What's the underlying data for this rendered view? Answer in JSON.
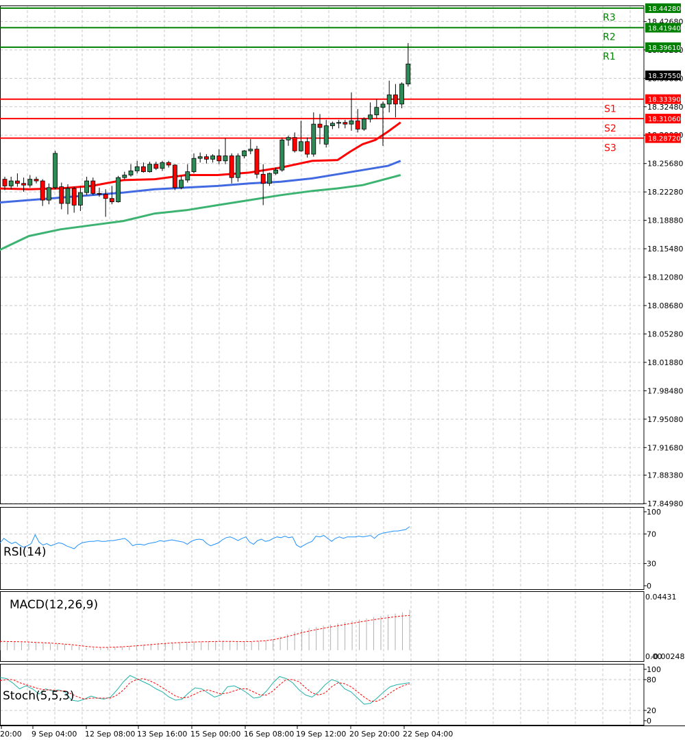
{
  "chart_data": [
    {
      "type": "candlestick",
      "panel": "price",
      "ylim": [
        17.8498,
        18.446
      ],
      "y_ticks": [
        "18.42680",
        "18.39280",
        "18.35880",
        "18.32480",
        "18.29080",
        "18.25680",
        "18.22280",
        "18.18880",
        "18.15480",
        "18.12080",
        "18.08680",
        "18.05280",
        "18.01880",
        "17.98480",
        "17.95080",
        "17.91680",
        "17.88380",
        "17.84980"
      ],
      "x_tick_labels": [
        "20:00",
        "9 Sep 04:00",
        "12 Sep 08:00",
        "13 Sep 16:00",
        "15 Sep 00:00",
        "16 Sep 08:00",
        "19 Sep 12:00",
        "20 Sep 20:00",
        "22 Sep 04:00"
      ],
      "current_price": "18.37550",
      "levels": [
        {
          "name": "R3",
          "value": 18.4428,
          "tag": "18.44280",
          "color": "#008000"
        },
        {
          "name": "R2",
          "value": 18.4194,
          "tag": "18.41940",
          "color": "#008000"
        },
        {
          "name": "R1",
          "value": 18.3961,
          "tag": "18.39610",
          "color": "#008000"
        },
        {
          "name": "S1",
          "value": 18.3339,
          "tag": "18.33390",
          "color": "#ff0000"
        },
        {
          "name": "S2",
          "value": 18.3106,
          "tag": "18.31060",
          "color": "#ff0000"
        },
        {
          "name": "S3",
          "value": 18.2872,
          "tag": "18.28720",
          "color": "#ff0000"
        }
      ],
      "candles": [
        [
          18.238,
          18.241,
          18.225,
          18.23
        ],
        [
          18.23,
          18.241,
          18.226,
          18.236
        ],
        [
          18.236,
          18.245,
          18.229,
          18.233
        ],
        [
          18.233,
          18.24,
          18.223,
          18.231
        ],
        [
          18.231,
          18.243,
          18.228,
          18.238
        ],
        [
          18.238,
          18.241,
          18.233,
          18.236
        ],
        [
          18.236,
          18.238,
          18.206,
          18.213
        ],
        [
          18.213,
          18.233,
          18.208,
          18.228
        ],
        [
          18.228,
          18.272,
          18.226,
          18.269
        ],
        [
          18.229,
          18.234,
          18.202,
          18.209
        ],
        [
          18.209,
          18.232,
          18.196,
          18.227
        ],
        [
          18.227,
          18.229,
          18.198,
          18.207
        ],
        [
          18.207,
          18.23,
          18.2,
          18.222
        ],
        [
          18.222,
          18.241,
          18.219,
          18.236
        ],
        [
          18.236,
          18.24,
          18.219,
          18.221
        ],
        [
          18.221,
          18.228,
          18.217,
          18.22
        ],
        [
          18.22,
          18.226,
          18.193,
          18.215
        ],
        [
          18.215,
          18.23,
          18.208,
          18.211
        ],
        [
          18.211,
          18.242,
          18.21,
          18.24
        ],
        [
          18.24,
          18.247,
          18.238,
          18.243
        ],
        [
          18.243,
          18.256,
          18.241,
          18.248
        ],
        [
          18.248,
          18.26,
          18.245,
          18.253
        ],
        [
          18.253,
          18.258,
          18.246,
          18.247
        ],
        [
          18.247,
          18.259,
          18.246,
          18.256
        ],
        [
          18.256,
          18.259,
          18.249,
          18.251
        ],
        [
          18.251,
          18.26,
          18.248,
          18.258
        ],
        [
          18.258,
          18.26,
          18.252,
          18.255
        ],
        [
          18.255,
          18.256,
          18.225,
          18.228
        ],
        [
          18.228,
          18.242,
          18.226,
          18.237
        ],
        [
          18.237,
          18.256,
          18.234,
          18.247
        ],
        [
          18.247,
          18.269,
          18.245,
          18.263
        ],
        [
          18.263,
          18.27,
          18.258,
          18.265
        ],
        [
          18.265,
          18.268,
          18.257,
          18.262
        ],
        [
          18.262,
          18.268,
          18.258,
          18.266
        ],
        [
          18.266,
          18.274,
          18.256,
          18.26
        ],
        [
          18.26,
          18.287,
          18.256,
          18.266
        ],
        [
          18.266,
          18.269,
          18.233,
          18.24
        ],
        [
          18.24,
          18.269,
          18.235,
          18.266
        ],
        [
          18.266,
          18.273,
          18.263,
          18.272
        ],
        [
          18.272,
          18.286,
          18.268,
          18.274
        ],
        [
          18.274,
          18.278,
          18.239,
          18.244
        ],
        [
          18.244,
          18.256,
          18.207,
          18.233
        ],
        [
          18.233,
          18.246,
          18.23,
          18.245
        ],
        [
          18.245,
          18.252,
          18.243,
          18.249
        ],
        [
          18.249,
          18.288,
          18.247,
          18.285
        ],
        [
          18.285,
          18.29,
          18.278,
          18.288
        ],
        [
          18.288,
          18.294,
          18.27,
          18.272
        ],
        [
          18.272,
          18.308,
          18.271,
          18.283
        ],
        [
          18.283,
          18.288,
          18.264,
          18.268
        ],
        [
          18.268,
          18.318,
          18.265,
          18.304
        ],
        [
          18.304,
          18.316,
          18.28,
          18.3
        ],
        [
          18.28,
          18.309,
          18.276,
          18.302
        ],
        [
          18.302,
          18.307,
          18.298,
          18.305
        ],
        [
          18.305,
          18.309,
          18.299,
          18.306
        ],
        [
          18.306,
          18.309,
          18.299,
          18.304
        ],
        [
          18.304,
          18.342,
          18.296,
          18.308
        ],
        [
          18.308,
          18.322,
          18.294,
          18.298
        ],
        [
          18.298,
          18.312,
          18.296,
          18.31
        ],
        [
          18.31,
          18.33,
          18.306,
          18.315
        ],
        [
          18.315,
          18.334,
          18.31,
          18.324
        ],
        [
          18.324,
          18.331,
          18.278,
          18.328
        ],
        [
          18.328,
          18.356,
          18.318,
          18.339
        ],
        [
          18.339,
          18.352,
          18.312,
          18.328
        ],
        [
          18.328,
          18.354,
          18.323,
          18.352
        ],
        [
          18.352,
          18.401,
          18.349,
          18.376
        ]
      ],
      "series": [
        {
          "color": "#ff0000",
          "width": 3,
          "points": [
            [
              0,
              18.227
            ],
            [
              10,
              18.226
            ],
            [
              20,
              18.227
            ],
            [
              30,
              18.23
            ],
            [
              40,
              18.237
            ],
            [
              50,
              18.238
            ],
            [
              60,
              18.243
            ],
            [
              70,
              18.243
            ],
            [
              80,
              18.246
            ],
            [
              90,
              18.252
            ],
            [
              100,
              18.26
            ],
            [
              108,
              18.261
            ],
            [
              112,
              18.271
            ],
            [
              116,
              18.28
            ],
            [
              120,
              18.285
            ],
            [
              124,
              18.295
            ],
            [
              128,
              18.306
            ]
          ]
        },
        {
          "color": "#4169e1",
          "width": 3,
          "points": [
            [
              0,
              18.21
            ],
            [
              10,
              18.213
            ],
            [
              20,
              18.216
            ],
            [
              30,
              18.219
            ],
            [
              40,
              18.222
            ],
            [
              50,
              18.226
            ],
            [
              60,
              18.228
            ],
            [
              70,
              18.23
            ],
            [
              80,
              18.233
            ],
            [
              90,
              18.235
            ],
            [
              100,
              18.239
            ],
            [
              108,
              18.244
            ],
            [
              116,
              18.249
            ],
            [
              124,
              18.254
            ],
            [
              128,
              18.26
            ]
          ]
        },
        {
          "color": "#3cb371",
          "width": 3,
          "points": [
            [
              0,
              18.152
            ],
            [
              10,
              18.17
            ],
            [
              20,
              18.178
            ],
            [
              30,
              18.183
            ],
            [
              40,
              18.188
            ],
            [
              50,
              18.197
            ],
            [
              60,
              18.201
            ],
            [
              70,
              18.207
            ],
            [
              80,
              18.213
            ],
            [
              90,
              18.219
            ],
            [
              100,
              18.224
            ],
            [
              108,
              18.227
            ],
            [
              116,
              18.231
            ],
            [
              124,
              18.239
            ],
            [
              128,
              18.243
            ]
          ]
        }
      ]
    },
    {
      "type": "line",
      "panel": "rsi",
      "title": "RSI(14)",
      "ylim": [
        0,
        100
      ],
      "y_ticks": [
        "100",
        "70",
        "30",
        "0"
      ],
      "values": [
        58,
        64,
        60,
        57,
        59,
        55,
        52,
        54,
        57,
        69,
        59,
        55,
        57,
        54,
        56,
        58,
        57,
        54,
        52,
        50,
        55,
        58,
        59,
        60,
        60,
        61,
        60,
        60,
        61,
        61,
        62,
        63,
        64,
        60,
        54,
        56,
        56,
        55,
        57,
        58,
        59,
        61,
        60,
        61,
        62,
        61,
        60,
        59,
        56,
        60,
        62,
        63,
        62,
        57,
        54,
        56,
        58,
        62,
        65,
        66,
        64,
        61,
        64,
        66,
        59,
        56,
        61,
        63,
        60,
        61,
        64,
        66,
        65,
        67,
        65,
        66,
        55,
        52,
        55,
        58,
        60,
        67,
        66,
        68,
        64,
        60,
        64,
        66,
        64,
        66,
        66,
        66,
        67,
        66,
        67,
        68,
        64,
        69,
        71,
        72,
        73,
        74,
        74,
        75,
        76,
        80
      ]
    },
    {
      "type": "bar",
      "panel": "macd",
      "title": "MACD(12,26,9)",
      "y_ticks": [
        "0.04431",
        "0.00",
        "-0.002482"
      ],
      "ylim": [
        -0.005,
        0.0443
      ],
      "histogram": [
        0.0065,
        0.0066,
        0.0066,
        0.0063,
        0.006,
        0.0058,
        0.0056,
        0.0055,
        0.0053,
        0.0048,
        0.004,
        0.003,
        0.0022,
        0.0018,
        0.0018,
        0.0022,
        0.0026,
        0.003,
        0.0036,
        0.004,
        0.0046,
        0.0052,
        0.0057,
        0.0061,
        0.0063,
        0.0066,
        0.0069,
        0.0071,
        0.0072,
        0.0074,
        0.0075,
        0.0077,
        0.0076,
        0.0071,
        0.0066,
        0.0068,
        0.0073,
        0.0078,
        0.009,
        0.011,
        0.013,
        0.015,
        0.017,
        0.018,
        0.019,
        0.02,
        0.021,
        0.022,
        0.023,
        0.024,
        0.025,
        0.026,
        0.027,
        0.028,
        0.029,
        0.03,
        0.031,
        0.033
      ],
      "signal": [
        0.0072,
        0.0071,
        0.007,
        0.0069,
        0.0067,
        0.0064,
        0.0061,
        0.0058,
        0.0055,
        0.005,
        0.0045,
        0.0038,
        0.0031,
        0.0026,
        0.0023,
        0.0023,
        0.0025,
        0.0028,
        0.0032,
        0.0036,
        0.0041,
        0.0046,
        0.0051,
        0.0055,
        0.0059,
        0.0062,
        0.0065,
        0.0067,
        0.0069,
        0.007,
        0.0071,
        0.0072,
        0.0072,
        0.0071,
        0.007,
        0.0071,
        0.0074,
        0.0078,
        0.0086,
        0.0098,
        0.0112,
        0.0127,
        0.0143,
        0.0156,
        0.0168,
        0.0179,
        0.019,
        0.02,
        0.021,
        0.022,
        0.023,
        0.024,
        0.025,
        0.0258,
        0.0266,
        0.0274,
        0.028,
        0.0284
      ]
    },
    {
      "type": "line",
      "panel": "stoch",
      "title": "Stoch(5,5,3)",
      "ylim": [
        0,
        100
      ],
      "y_ticks": [
        "100",
        "80",
        "20",
        "0"
      ],
      "main": [
        84,
        82,
        73,
        62,
        68,
        62,
        52,
        62,
        58,
        60,
        56,
        40,
        38,
        42,
        48,
        44,
        42,
        46,
        60,
        76,
        88,
        82,
        76,
        70,
        62,
        56,
        46,
        40,
        42,
        54,
        64,
        62,
        54,
        46,
        50,
        66,
        68,
        62,
        54,
        44,
        46,
        58,
        74,
        86,
        82,
        74,
        60,
        50,
        46,
        56,
        70,
        80,
        76,
        62,
        56,
        44,
        32,
        34,
        44,
        56,
        66,
        70,
        72,
        74
      ],
      "signal": [
        78,
        80,
        80,
        74,
        70,
        66,
        62,
        60,
        60,
        58,
        58,
        52,
        46,
        42,
        44,
        44,
        44,
        44,
        50,
        60,
        74,
        80,
        82,
        78,
        72,
        64,
        56,
        48,
        44,
        46,
        52,
        58,
        60,
        56,
        52,
        54,
        58,
        62,
        62,
        56,
        50,
        50,
        58,
        70,
        80,
        80,
        76,
        64,
        54,
        50,
        54,
        66,
        74,
        72,
        66,
        56,
        46,
        38,
        38,
        44,
        54,
        62,
        68,
        72
      ]
    }
  ]
}
